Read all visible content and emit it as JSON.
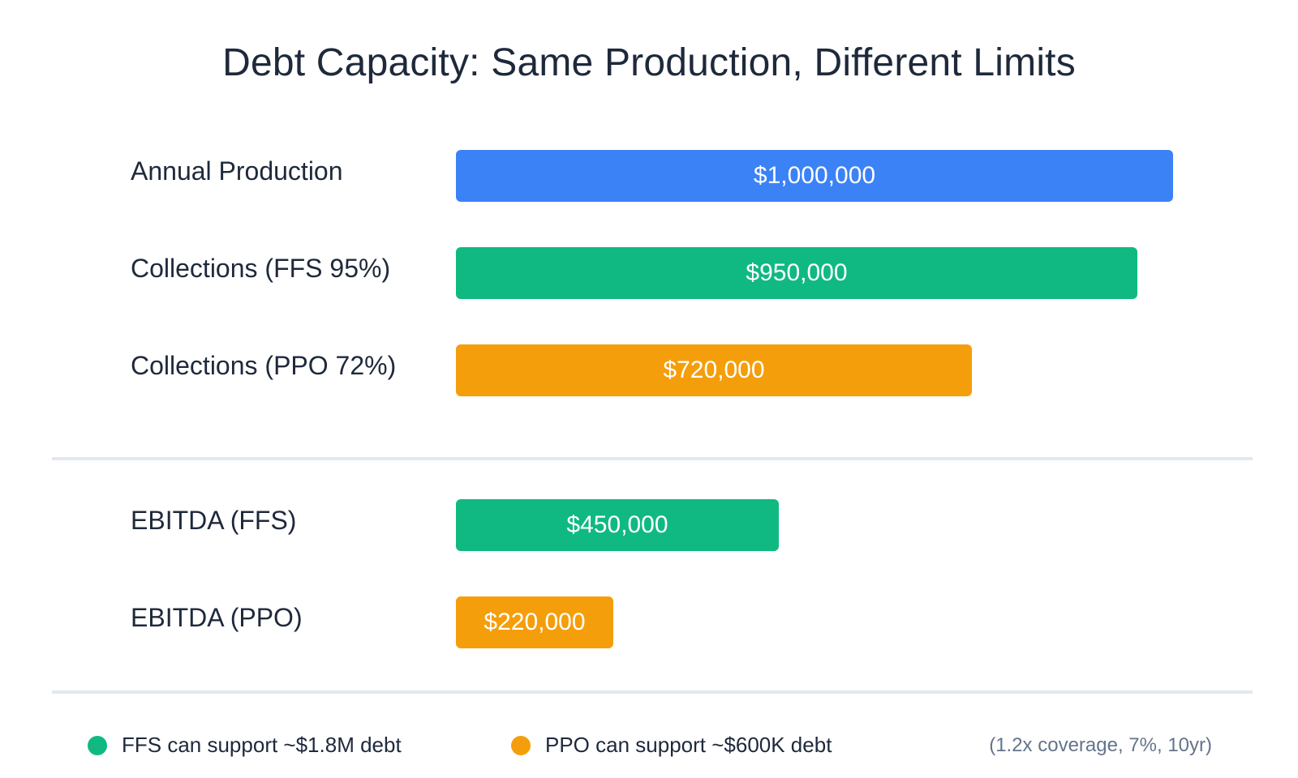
{
  "chart_data": {
    "type": "bar",
    "orientation": "horizontal",
    "title": "Debt Capacity: Same Production, Different Limits",
    "categories": [
      "Annual Production",
      "Collections (FFS 95%)",
      "Collections (PPO 72%)",
      "EBITDA (FFS)",
      "EBITDA (PPO)"
    ],
    "values": [
      1000000,
      950000,
      720000,
      450000,
      220000
    ],
    "value_labels": [
      "$1,000,000",
      "$950,000",
      "$720,000",
      "$450,000",
      "$220,000"
    ],
    "colors": [
      "#3b82f6",
      "#10b981",
      "#f59e0b",
      "#10b981",
      "#f59e0b"
    ],
    "xlim": [
      0,
      1000000
    ],
    "grid": false,
    "legend": [
      {
        "label": "FFS can support ~$1.8M debt",
        "color": "#10b981"
      },
      {
        "label": "PPO can support ~$600K debt",
        "color": "#f59e0b"
      }
    ],
    "note": "(1.2x coverage, 7%, 10yr)"
  }
}
